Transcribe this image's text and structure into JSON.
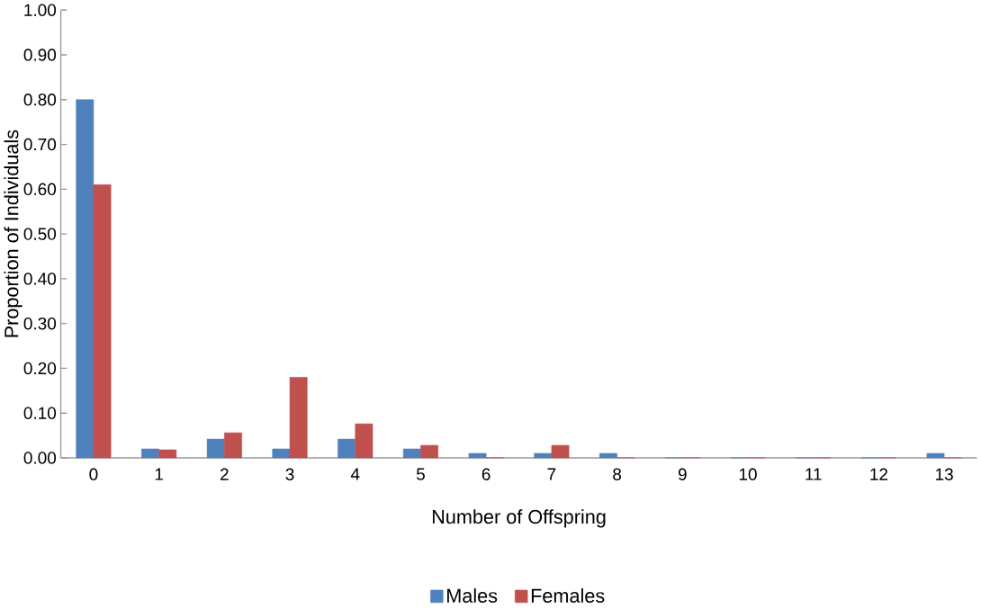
{
  "chart_data": {
    "type": "bar",
    "xlabel": "Number of Offspring",
    "ylabel": "Proportion of Individuals",
    "categories": [
      "0",
      "1",
      "2",
      "3",
      "4",
      "5",
      "6",
      "7",
      "8",
      "9",
      "10",
      "11",
      "12",
      "13"
    ],
    "series": [
      {
        "name": "Males",
        "color": "#4f81bd",
        "values": [
          0.8,
          0.02,
          0.042,
          0.02,
          0.042,
          0.02,
          0.01,
          0.01,
          0.01,
          0,
          0,
          0,
          0,
          0.01
        ]
      },
      {
        "name": "Females",
        "color": "#c0504d",
        "values": [
          0.61,
          0.018,
          0.056,
          0.18,
          0.076,
          0.028,
          0,
          0.028,
          0,
          0,
          0,
          0,
          0,
          0
        ]
      }
    ],
    "ylim": [
      0,
      1
    ],
    "yticks": [
      {
        "value": 0,
        "label": "0.00"
      },
      {
        "value": 0.1,
        "label": "0.10"
      },
      {
        "value": 0.2,
        "label": "0.20"
      },
      {
        "value": 0.3,
        "label": "0.30"
      },
      {
        "value": 0.4,
        "label": "0.40"
      },
      {
        "value": 0.5,
        "label": "0.50"
      },
      {
        "value": 0.6,
        "label": "0.60"
      },
      {
        "value": 0.7,
        "label": "0.70"
      },
      {
        "value": 0.8,
        "label": "0.80"
      },
      {
        "value": 0.9,
        "label": "0.90"
      },
      {
        "value": 1,
        "label": "1.00"
      }
    ],
    "grid": false,
    "legend": "bottom"
  }
}
